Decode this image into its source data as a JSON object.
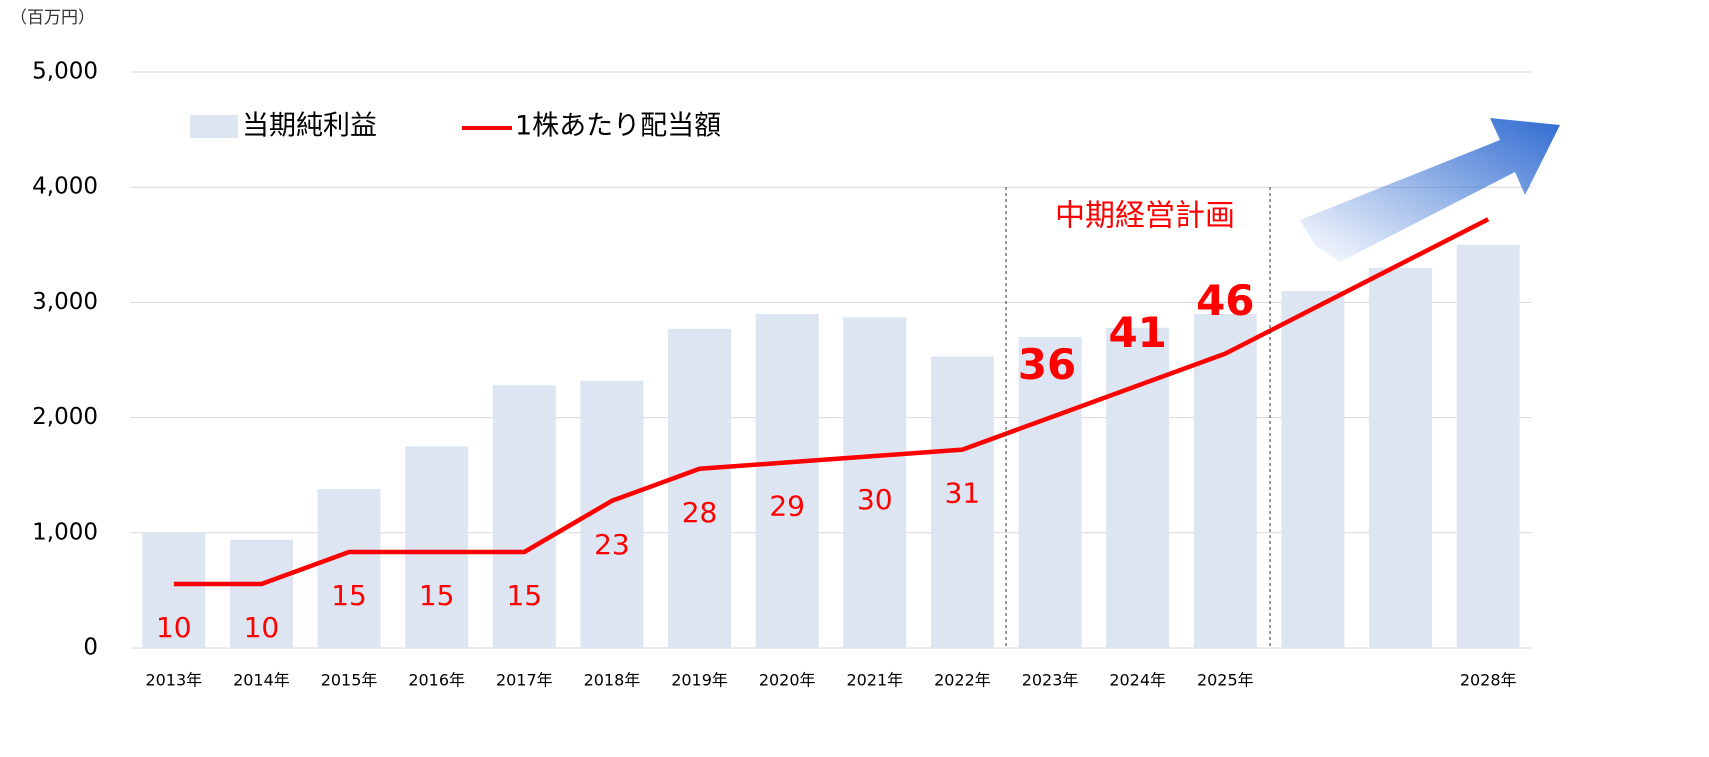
{
  "chart_data": {
    "type": "bar_line",
    "unit_label": "（百万円）",
    "annotation": "中期経営計画",
    "categories": [
      "2013年",
      "2014年",
      "2015年",
      "2016年",
      "2017年",
      "2018年",
      "2019年",
      "2020年",
      "2021年",
      "2022年",
      "2023年",
      "2024年",
      "2025年",
      null,
      null,
      "2028年"
    ],
    "series": [
      {
        "name": "当期純利益",
        "color": "#dde5f2",
        "values": [
          1000,
          940,
          1380,
          1750,
          2280,
          2320,
          2770,
          2900,
          2870,
          2530,
          2700,
          2780,
          2900,
          3100,
          3300,
          3500
        ]
      },
      {
        "name": "1株あたり配当額",
        "color": "#ff0000",
        "axis": "y2",
        "values": [
          10,
          10,
          15,
          15,
          15,
          23,
          28,
          29,
          30,
          31,
          36,
          41,
          46,
          53,
          60,
          67
        ],
        "value_labels": [
          "10",
          "10",
          "15",
          "15",
          "15",
          "23",
          "28",
          "29",
          "30",
          "31",
          "36",
          "41",
          "46",
          null,
          null,
          null
        ]
      }
    ],
    "ylim": [
      0,
      5000
    ],
    "yticks": [
      0,
      {
        "value": 1000,
        "label": "1,000"
      },
      {
        "value": 2000,
        "label": "2,000"
      },
      {
        "value": 3000,
        "label": "3,000"
      },
      {
        "value": 4000,
        "label": "4,000"
      },
      {
        "value": 5000,
        "label": "5,000"
      }
    ],
    "y2lim": [
      0,
      90
    ],
    "grid": true
  }
}
